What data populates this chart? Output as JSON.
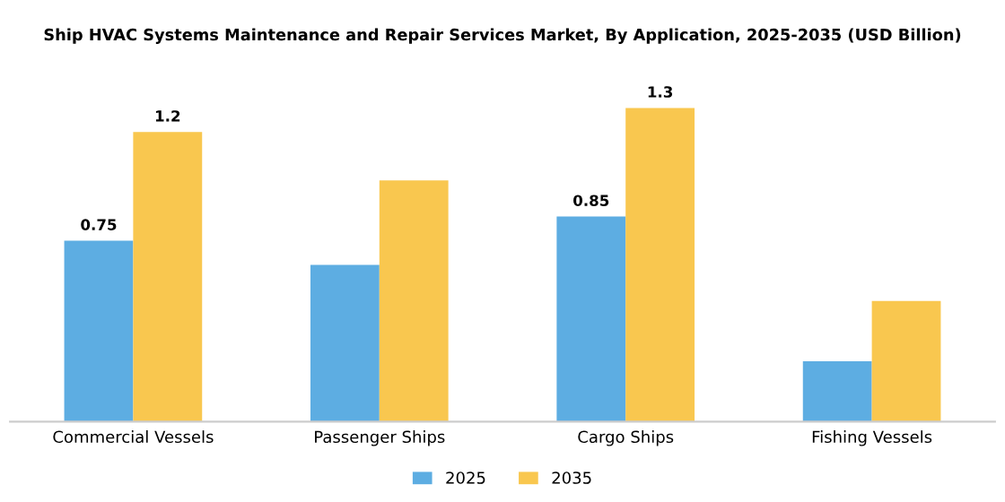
{
  "chart_data": {
    "type": "bar",
    "title": "Ship HVAC Systems Maintenance and Repair Services Market, By Application, 2025-2035 (USD Billion)",
    "categories": [
      "Commercial Vessels",
      "Passenger Ships",
      "Cargo Ships",
      "Fishing Vessels"
    ],
    "series": [
      {
        "name": "2025",
        "color": "#5dade2",
        "values": [
          0.75,
          0.65,
          0.85,
          0.25
        ],
        "value_labels": [
          "0.75",
          null,
          "0.85",
          null
        ]
      },
      {
        "name": "2035",
        "color": "#f9c74f",
        "values": [
          1.2,
          1.0,
          1.3,
          0.5
        ],
        "value_labels": [
          "1.2",
          null,
          "1.3",
          null
        ]
      }
    ],
    "legend": "bottom",
    "grid": false
  }
}
